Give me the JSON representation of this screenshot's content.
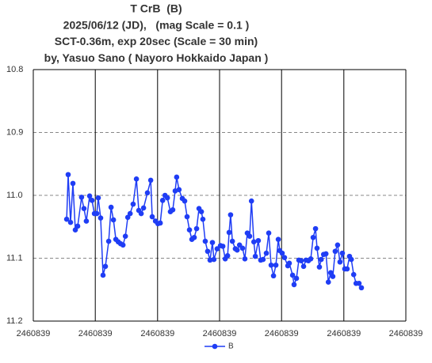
{
  "chart_data": {
    "type": "line",
    "title": [
      "T CrB  (B)",
      "2025/06/12 (JD),   (mag Scale = 0.1 )",
      "SCT-0.36m, exp 20sec (Scale = 30 min)",
      "by, Yasuo Sano ( Nayoro Hokkaido Japan )"
    ],
    "x": [
      2460839.0112,
      2460839.0117,
      2460839.0125,
      2460839.0133,
      2460839.0141,
      2460839.0149,
      2460839.0162,
      2460839.017,
      2460839.0178,
      2460839.0189,
      2460839.0197,
      2460839.0205,
      2460839.0213,
      2460839.0218,
      2460839.0226,
      2460839.0234,
      2460839.0242,
      2460839.0253,
      2460839.0261,
      2460839.0269,
      2460839.0277,
      2460839.0285,
      2460839.0293,
      2460839.0301,
      2460839.0309,
      2460839.0317,
      2460839.0325,
      2460839.0335,
      2460839.0346,
      2460839.0354,
      2460839.0362,
      2460839.037,
      2460839.0383,
      2460839.0394,
      2460839.0399,
      2460839.041,
      2460839.0418,
      2460839.0426,
      2460839.0434,
      2460839.0442,
      2460839.045,
      2460839.046,
      2460839.0468,
      2460839.0476,
      2460839.0481,
      2460839.0489,
      2460839.05,
      2460839.0508,
      2460839.0516,
      2460839.0524,
      2460839.0532,
      2460839.054,
      2460839.0548,
      2460839.0556,
      2460839.0564,
      2460839.0569,
      2460839.0577,
      2460839.0585,
      2460839.0593,
      2460839.0601,
      2460839.0606,
      2460839.0617,
      2460839.0628,
      2460839.0636,
      2460839.0644,
      2460839.0652,
      2460839.0657,
      2460839.0662,
      2460839.0668,
      2460839.0678,
      2460839.0684,
      2460839.0692,
      2460839.0702,
      2460839.071,
      2460839.0718,
      2460839.0726,
      2460839.0732,
      2460839.074,
      2460839.0745,
      2460839.0755,
      2460839.0763,
      2460839.0771,
      2460839.0782,
      2460839.079,
      2460839.0798,
      2460839.0806,
      2460839.0814,
      2460839.0822,
      2460839.0827,
      2460839.0835,
      2460839.0843,
      2460839.0854,
      2460839.0859,
      2460839.087,
      2460839.0875,
      2460839.0883,
      2460839.0891,
      2460839.0899,
      2460839.0907,
      2460839.0915,
      2460839.0923,
      2460839.0931,
      2460839.0939,
      2460839.0947,
      2460839.0952,
      2460839.096,
      2460839.0966,
      2460839.0974,
      2460839.0982,
      2460839.099,
      2460839.0998,
      2460839.1005,
      2460839.1013,
      2460839.1021,
      2460839.1029,
      2460839.1037,
      2460839.1045,
      2460839.1053,
      2460839.1061,
      2460839.1067,
      2460839.1075,
      2460839.1083,
      2460839.1093,
      2460839.1101
    ],
    "series": [
      {
        "name": "B",
        "color": "#1f3df5",
        "values": [
          11.038,
          10.967,
          11.043,
          10.981,
          11.055,
          11.049,
          11.003,
          11.021,
          11.041,
          11.001,
          11.008,
          11.029,
          11.029,
          11.004,
          11.036,
          11.127,
          11.113,
          11.073,
          11.019,
          11.039,
          11.07,
          11.074,
          11.077,
          11.079,
          11.065,
          11.035,
          11.029,
          11.014,
          10.974,
          11.024,
          11.029,
          11.02,
          10.996,
          10.976,
          11.034,
          11.041,
          11.045,
          11.044,
          11.008,
          11.0,
          11.004,
          11.026,
          11.023,
          10.993,
          10.971,
          10.991,
          11.005,
          11.009,
          11.034,
          11.055,
          11.07,
          11.067,
          11.053,
          11.021,
          11.026,
          11.038,
          11.073,
          11.089,
          11.103,
          11.075,
          11.102,
          11.085,
          11.08,
          11.081,
          11.101,
          11.096,
          11.059,
          11.031,
          11.073,
          11.085,
          11.087,
          11.079,
          11.084,
          11.101,
          11.06,
          11.065,
          11.009,
          11.074,
          11.097,
          11.072,
          11.103,
          11.102,
          11.092,
          11.06,
          11.111,
          11.128,
          11.111,
          11.07,
          11.088,
          11.092,
          11.099,
          11.112,
          11.108,
          11.127,
          11.142,
          11.132,
          11.103,
          11.104,
          11.113,
          11.103,
          11.104,
          11.101,
          11.067,
          11.053,
          11.084,
          11.114,
          11.102,
          11.094,
          11.093,
          11.138,
          11.123,
          11.129,
          11.089,
          11.079,
          11.106,
          11.092,
          11.117,
          11.117,
          11.097,
          11.102,
          11.126,
          11.14,
          11.14,
          11.147
        ]
      }
    ],
    "xlim": [
      2460839,
      2460839.125
    ],
    "xticks": [
      {
        "value": 2460839,
        "label": "2460839"
      },
      {
        "value": 2460839.0208,
        "label": "2460839"
      },
      {
        "value": 2460839.0417,
        "label": "2460839"
      },
      {
        "value": 2460839.0625,
        "label": "2460839"
      },
      {
        "value": 2460839.0833,
        "label": "2460839"
      },
      {
        "value": 2460839.1042,
        "label": "2460839"
      },
      {
        "value": 2460839.125,
        "label": "2460839"
      }
    ],
    "ylim": [
      10.8,
      11.2
    ],
    "yticks": [
      10.8,
      10.9,
      {
        "value": 11,
        "label": "11.0"
      },
      11.1,
      11.2
    ],
    "y_inverted": true,
    "grid": true,
    "legend": "bottom"
  }
}
